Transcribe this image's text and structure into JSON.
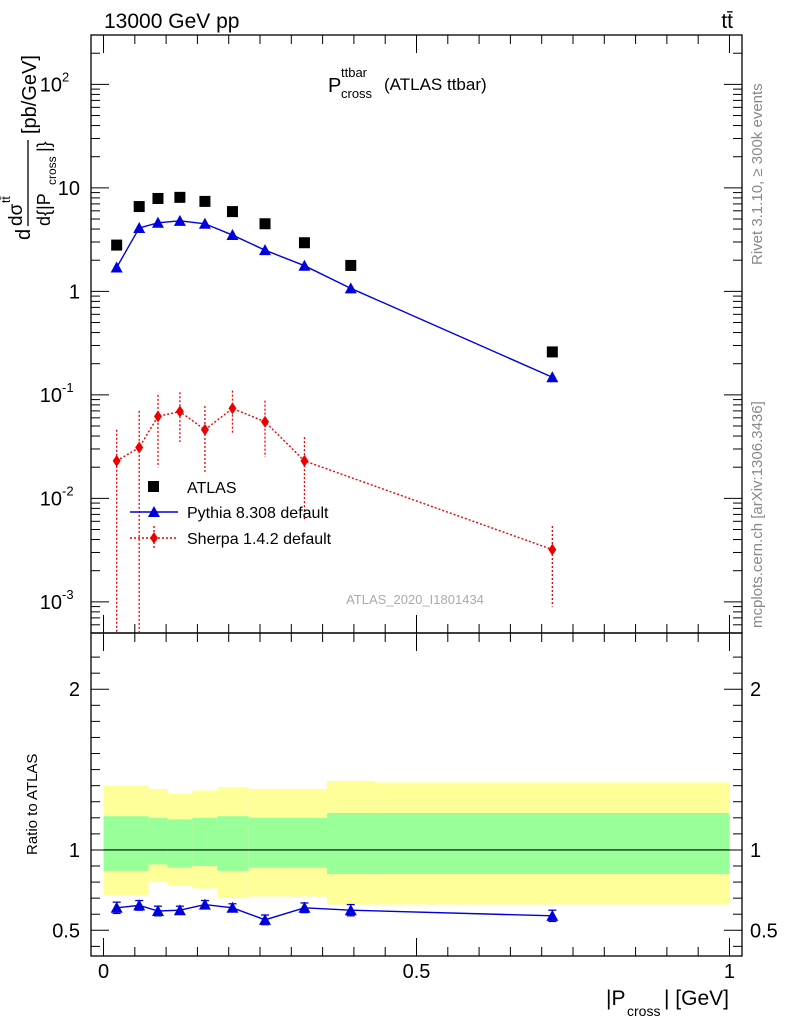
{
  "header": {
    "energy": "13000 GeV pp",
    "process": "tt̄"
  },
  "side_labels": {
    "rivet": "Rivet 3.1.10, ≥ 300k events",
    "mcplots": "mcplots.cern.ch [arXiv:1306.3436]"
  },
  "chart_data": [
    {
      "type": "scatter",
      "title": "P_cross^ttbar (ATLAS ttbar)",
      "watermark": "ATLAS_2020_I1801434",
      "ylabel": "d dσ^tt / d{|P_cross|} [pb/GeV]",
      "yscale": "log",
      "ylim": [
        0.0005,
        300
      ],
      "xlim": [
        -0.02,
        1.02
      ],
      "legend_position": "bottom-left",
      "y_tick_labels": [
        "10^2",
        "10",
        "1",
        "10^-1",
        "10^-2",
        "10^-3"
      ],
      "series": [
        {
          "name": "ATLAS",
          "style": "markers",
          "marker": "square",
          "color": "#000000",
          "x": [
            0.021,
            0.057,
            0.087,
            0.122,
            0.162,
            0.206,
            0.258,
            0.321,
            0.395,
            0.717
          ],
          "y": [
            2.8,
            6.6,
            7.9,
            8.1,
            7.4,
            5.9,
            4.5,
            2.95,
            1.78,
            0.26
          ]
        },
        {
          "name": "Pythia 8.308 default",
          "style": "line",
          "marker": "triangle",
          "color": "#0000dd",
          "x": [
            0.021,
            0.057,
            0.087,
            0.122,
            0.162,
            0.206,
            0.258,
            0.321,
            0.395,
            0.717
          ],
          "y": [
            1.7,
            4.1,
            4.6,
            4.8,
            4.5,
            3.5,
            2.5,
            1.77,
            1.07,
            0.148
          ]
        },
        {
          "name": "Sherpa 1.4.2 default",
          "style": "dotted",
          "marker": "diamond",
          "color": "#ee0000",
          "x": [
            0.021,
            0.057,
            0.087,
            0.122,
            0.162,
            0.206,
            0.258,
            0.321,
            0.717
          ],
          "y": [
            0.023,
            0.031,
            0.062,
            0.069,
            0.046,
            0.074,
            0.055,
            0.023,
            0.0032
          ],
          "y_low": [
            0.0001,
            0.0001,
            0.02,
            0.035,
            0.018,
            0.042,
            0.025,
            0.006,
            0.0009
          ],
          "y_high": [
            0.046,
            0.07,
            0.1,
            0.106,
            0.078,
            0.11,
            0.088,
            0.039,
            0.0054
          ]
        }
      ]
    },
    {
      "type": "line",
      "ylabel": "Ratio to ATLAS",
      "xlabel": "|P_cross| [GeV]",
      "xlim": [
        -0.02,
        1.02
      ],
      "ylim": [
        0.34,
        2.35
      ],
      "x_tick_labels": [
        "0",
        "0.5",
        "1"
      ],
      "y_tick_labels": [
        "0.5",
        "1",
        "2"
      ],
      "bands": {
        "edges": [
          0,
          0.072,
          0.102,
          0.142,
          0.182,
          0.232,
          0.285,
          0.357,
          0.433,
          1.0
        ],
        "yellow_low": [
          0.72,
          0.8,
          0.78,
          0.76,
          0.7,
          0.71,
          0.71,
          0.66,
          0.66
        ],
        "yellow_high": [
          1.4,
          1.38,
          1.35,
          1.37,
          1.39,
          1.38,
          1.38,
          1.43,
          1.42
        ],
        "green_low": [
          0.87,
          0.91,
          0.89,
          0.9,
          0.87,
          0.89,
          0.89,
          0.85,
          0.85
        ],
        "green_high": [
          1.21,
          1.2,
          1.19,
          1.2,
          1.21,
          1.2,
          1.2,
          1.23,
          1.23
        ],
        "yellow_color": "#ffff99",
        "green_color": "#99ff99"
      },
      "series": [
        {
          "name": "Pythia 8.308 default",
          "color": "#0000dd",
          "x": [
            0.021,
            0.057,
            0.087,
            0.122,
            0.162,
            0.206,
            0.258,
            0.321,
            0.395,
            0.717
          ],
          "y": [
            0.64,
            0.655,
            0.62,
            0.625,
            0.66,
            0.64,
            0.565,
            0.64,
            0.625,
            0.59
          ],
          "y_err": [
            0.035,
            0.03,
            0.03,
            0.025,
            0.025,
            0.025,
            0.03,
            0.03,
            0.035,
            0.035
          ]
        }
      ]
    }
  ]
}
